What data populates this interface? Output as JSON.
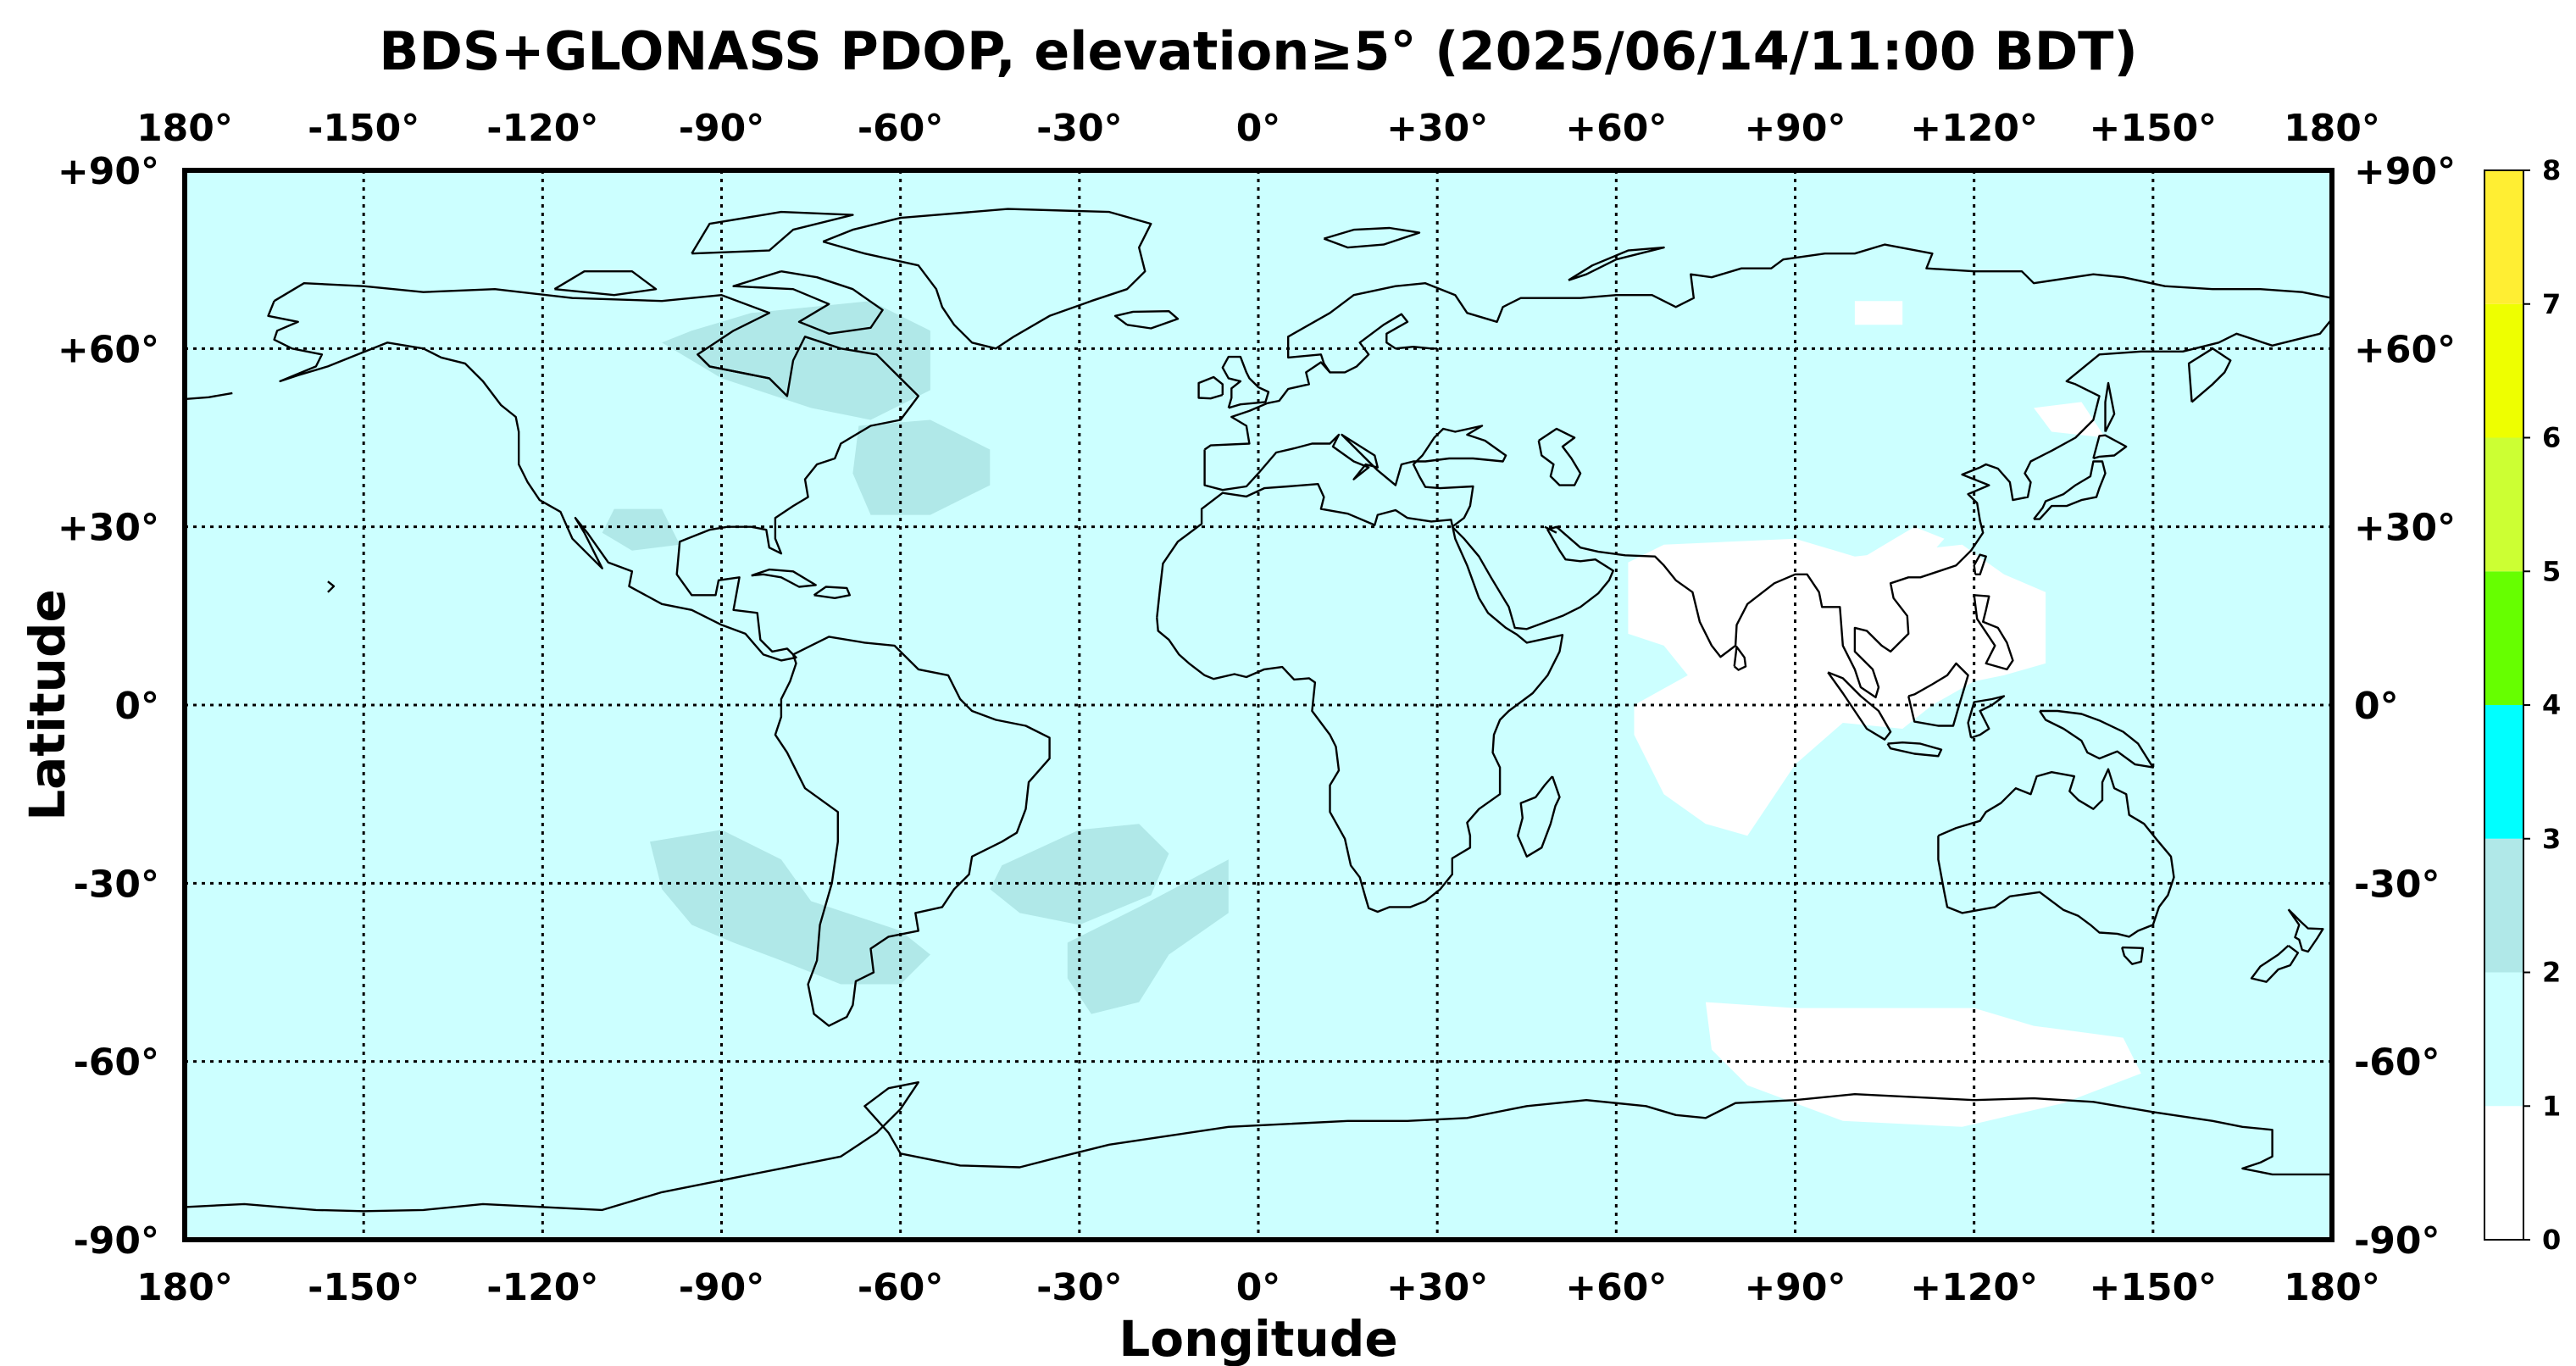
{
  "title": "BDS+GLONASS PDOP, elevation≥5° (2025/06/14/11:00 BDT)",
  "axes": {
    "xlabel": "Longitude",
    "ylabel": "Latitude",
    "lon_ticks": [
      "180°",
      "-150°",
      "-120°",
      "-90°",
      "-60°",
      "-30°",
      "0°",
      "+30°",
      "+60°",
      "+90°",
      "+120°",
      "+150°",
      "180°"
    ],
    "lat_ticks": [
      "+90°",
      "+60°",
      "+30°",
      "0°",
      "-30°",
      "-60°",
      "-90°"
    ],
    "lon_range": [
      -180,
      180
    ],
    "lat_range": [
      -90,
      90
    ],
    "grid": "dotted"
  },
  "colorbar": {
    "ticks": [
      "0",
      "1",
      "2",
      "3",
      "4",
      "5",
      "6",
      "7",
      "8"
    ],
    "colors": [
      "#ffffff",
      "#ccffff",
      "#b0e8e8",
      "#00ffff",
      "#66ff00",
      "#ccff33",
      "#eeff00",
      "#ffee33"
    ],
    "placement": "right"
  },
  "background_color": "#ccffff",
  "chart_data": {
    "type": "heatmap",
    "variable": "PDOP",
    "default_value_range": [
      1,
      2
    ],
    "regions": [
      {
        "value_range": [
          2,
          3
        ],
        "polygon": [
          [
            -95,
            63
          ],
          [
            -85,
            66
          ],
          [
            -65,
            68
          ],
          [
            -55,
            63
          ],
          [
            -55,
            53
          ],
          [
            -65,
            48
          ],
          [
            -75,
            50
          ],
          [
            -90,
            55
          ],
          [
            -100,
            61
          ]
        ]
      },
      {
        "value_range": [
          2,
          3
        ],
        "polygon": [
          [
            -67,
            47
          ],
          [
            -55,
            48
          ],
          [
            -45,
            43
          ],
          [
            -45,
            37
          ],
          [
            -55,
            32
          ],
          [
            -65,
            32
          ],
          [
            -68,
            39
          ]
        ]
      },
      {
        "value_range": [
          2,
          3
        ],
        "polygon": [
          [
            -108,
            33
          ],
          [
            -100,
            33
          ],
          [
            -97,
            27
          ],
          [
            -105,
            26
          ],
          [
            -110,
            29
          ]
        ]
      },
      {
        "value_range": [
          2,
          3
        ],
        "polygon": [
          [
            -102,
            -23
          ],
          [
            -90,
            -21
          ],
          [
            -80,
            -26
          ],
          [
            -75,
            -33
          ],
          [
            -60,
            -38
          ],
          [
            -55,
            -42
          ],
          [
            -60,
            -47
          ],
          [
            -70,
            -47
          ],
          [
            -80,
            -43
          ],
          [
            -88,
            -40
          ],
          [
            -95,
            -37
          ],
          [
            -100,
            -31
          ]
        ]
      },
      {
        "value_range": [
          2,
          3
        ],
        "polygon": [
          [
            -43,
            -27
          ],
          [
            -30,
            -21
          ],
          [
            -20,
            -20
          ],
          [
            -15,
            -25
          ],
          [
            -18,
            -32
          ],
          [
            -30,
            -37
          ],
          [
            -40,
            -35
          ],
          [
            -45,
            -31
          ]
        ]
      },
      {
        "value_range": [
          2,
          3
        ],
        "polygon": [
          [
            -32,
            -40
          ],
          [
            -20,
            -34
          ],
          [
            -5,
            -26
          ],
          [
            -5,
            -35
          ],
          [
            -15,
            -42
          ],
          [
            -20,
            -50
          ],
          [
            -28,
            -52
          ],
          [
            -32,
            -46
          ]
        ]
      },
      {
        "value_range": [
          0,
          1
        ],
        "polygon": [
          [
            68,
            27
          ],
          [
            90,
            28
          ],
          [
            100,
            25
          ],
          [
            118,
            27
          ],
          [
            125,
            22
          ],
          [
            132,
            19
          ],
          [
            132,
            7
          ],
          [
            125,
            5
          ],
          [
            120,
            4
          ],
          [
            113,
            0
          ],
          [
            108,
            -4
          ],
          [
            98,
            -3
          ],
          [
            90,
            -10
          ],
          [
            82,
            -22
          ],
          [
            75,
            -20
          ],
          [
            68,
            -15
          ],
          [
            63,
            -5
          ],
          [
            63,
            0
          ],
          [
            72,
            5
          ],
          [
            68,
            10
          ],
          [
            62,
            12
          ],
          [
            62,
            24
          ]
        ]
      },
      {
        "value_range": [
          0,
          1
        ],
        "polygon": [
          [
            100,
            24
          ],
          [
            110,
            30
          ],
          [
            115,
            28
          ],
          [
            108,
            20
          ],
          [
            100,
            18
          ]
        ]
      },
      {
        "value_range": [
          0,
          1
        ],
        "polygon": [
          [
            130,
            50
          ],
          [
            138,
            51
          ],
          [
            142,
            45
          ],
          [
            133,
            46
          ]
        ]
      },
      {
        "value_range": [
          0,
          1
        ],
        "polygon": [
          [
            100,
            68
          ],
          [
            108,
            68
          ],
          [
            108,
            64
          ],
          [
            100,
            64
          ]
        ]
      },
      {
        "value_range": [
          0,
          1
        ],
        "polygon": [
          [
            75,
            -50
          ],
          [
            90,
            -51
          ],
          [
            120,
            -51
          ],
          [
            130,
            -54
          ],
          [
            145,
            -56
          ],
          [
            148,
            -62
          ],
          [
            135,
            -67
          ],
          [
            118,
            -71
          ],
          [
            98,
            -70
          ],
          [
            82,
            -64
          ],
          [
            76,
            -58
          ]
        ]
      }
    ]
  }
}
